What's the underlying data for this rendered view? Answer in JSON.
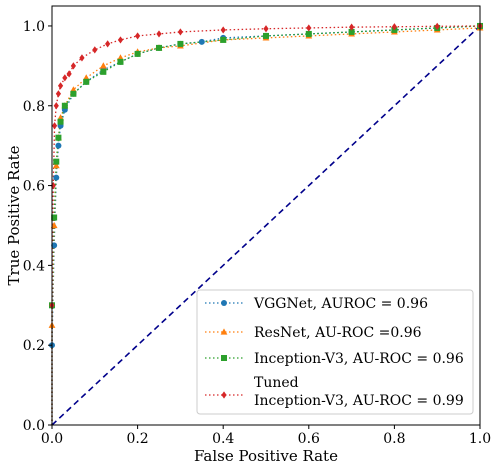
{
  "chart_data": {
    "type": "line",
    "title": "",
    "xlabel": "False Positive Rate",
    "ylabel": "True Positive Rate",
    "xlim": [
      0.0,
      1.0
    ],
    "ylim": [
      0.0,
      1.05
    ],
    "xticks": [
      "0.0",
      "0.2",
      "0.4",
      "0.6",
      "0.8",
      "1.0"
    ],
    "yticks": [
      "0.0",
      "0.2",
      "0.4",
      "0.6",
      "0.8",
      "1.0"
    ],
    "grid": false,
    "legend_position": "lower-right",
    "series": [
      {
        "name": "VGGNet, AUROC = 0.96",
        "color": "#1f77b4",
        "marker": "circle",
        "points": [
          [
            0,
            0
          ],
          [
            0.0,
            0.2
          ],
          [
            0.005,
            0.45
          ],
          [
            0.01,
            0.62
          ],
          [
            0.015,
            0.7
          ],
          [
            0.02,
            0.75
          ],
          [
            0.03,
            0.79
          ],
          [
            0.05,
            0.83
          ],
          [
            0.08,
            0.86
          ],
          [
            0.12,
            0.89
          ],
          [
            0.16,
            0.91
          ],
          [
            0.2,
            0.93
          ],
          [
            0.25,
            0.945
          ],
          [
            0.3,
            0.955
          ],
          [
            0.35,
            0.96
          ],
          [
            0.4,
            0.97
          ],
          [
            0.5,
            0.975
          ],
          [
            0.6,
            0.98
          ],
          [
            0.7,
            0.985
          ],
          [
            0.8,
            0.99
          ],
          [
            0.9,
            0.995
          ],
          [
            1.0,
            1.0
          ]
        ]
      },
      {
        "name": "ResNet, AU-ROC =0.96",
        "color": "#ff7f0e",
        "marker": "triangle",
        "points": [
          [
            0,
            0
          ],
          [
            0.0,
            0.25
          ],
          [
            0.005,
            0.5
          ],
          [
            0.01,
            0.65
          ],
          [
            0.015,
            0.72
          ],
          [
            0.02,
            0.77
          ],
          [
            0.03,
            0.8
          ],
          [
            0.05,
            0.84
          ],
          [
            0.08,
            0.87
          ],
          [
            0.12,
            0.9
          ],
          [
            0.16,
            0.92
          ],
          [
            0.2,
            0.935
          ],
          [
            0.25,
            0.945
          ],
          [
            0.3,
            0.95
          ],
          [
            0.4,
            0.965
          ],
          [
            0.5,
            0.97
          ],
          [
            0.6,
            0.975
          ],
          [
            0.7,
            0.98
          ],
          [
            0.8,
            0.985
          ],
          [
            0.9,
            0.99
          ],
          [
            1.0,
            0.995
          ]
        ]
      },
      {
        "name": "Inception-V3, AU-ROC = 0.96",
        "color": "#2ca02c",
        "marker": "square",
        "points": [
          [
            0,
            0
          ],
          [
            0.0,
            0.3
          ],
          [
            0.005,
            0.52
          ],
          [
            0.01,
            0.66
          ],
          [
            0.015,
            0.72
          ],
          [
            0.02,
            0.76
          ],
          [
            0.03,
            0.8
          ],
          [
            0.05,
            0.83
          ],
          [
            0.08,
            0.86
          ],
          [
            0.12,
            0.885
          ],
          [
            0.16,
            0.91
          ],
          [
            0.2,
            0.93
          ],
          [
            0.25,
            0.945
          ],
          [
            0.3,
            0.955
          ],
          [
            0.4,
            0.965
          ],
          [
            0.5,
            0.975
          ],
          [
            0.6,
            0.98
          ],
          [
            0.7,
            0.985
          ],
          [
            0.8,
            0.99
          ],
          [
            0.9,
            0.995
          ],
          [
            1.0,
            1.0
          ]
        ]
      },
      {
        "name": "Tuned Inception-V3, AU-ROC = 0.99",
        "legend_lines": [
          "Tuned",
          "Inception-V3, AU-ROC = 0.99"
        ],
        "color": "#d62728",
        "marker": "diamond",
        "points": [
          [
            0,
            0
          ],
          [
            0.0,
            0.3
          ],
          [
            0.003,
            0.6
          ],
          [
            0.006,
            0.75
          ],
          [
            0.01,
            0.8
          ],
          [
            0.015,
            0.83
          ],
          [
            0.02,
            0.85
          ],
          [
            0.03,
            0.87
          ],
          [
            0.04,
            0.88
          ],
          [
            0.05,
            0.9
          ],
          [
            0.07,
            0.92
          ],
          [
            0.1,
            0.94
          ],
          [
            0.13,
            0.955
          ],
          [
            0.16,
            0.965
          ],
          [
            0.2,
            0.975
          ],
          [
            0.25,
            0.98
          ],
          [
            0.3,
            0.985
          ],
          [
            0.4,
            0.99
          ],
          [
            0.5,
            0.993
          ],
          [
            0.6,
            0.995
          ],
          [
            0.7,
            0.997
          ],
          [
            0.8,
            0.998
          ],
          [
            0.9,
            0.999
          ],
          [
            1.0,
            1.0
          ]
        ]
      },
      {
        "name": "",
        "color": "#00008b",
        "style": "dashed",
        "points": [
          [
            0,
            0
          ],
          [
            1,
            1
          ]
        ]
      }
    ]
  }
}
